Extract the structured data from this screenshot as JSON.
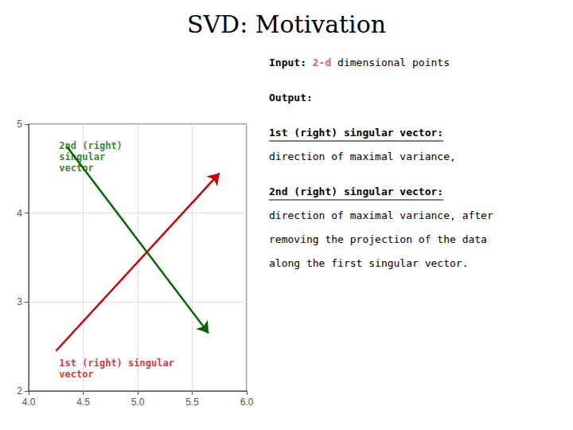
{
  "chart_data": {
    "type": "arrows",
    "title": "SVD: Motivation",
    "xlim": [
      4.0,
      6.0
    ],
    "ylim": [
      2.0,
      5.0
    ],
    "xticks": [
      {
        "value": 4.0,
        "label": "4.0"
      },
      {
        "value": 4.5,
        "label": "4.5"
      },
      {
        "value": 5.0,
        "label": "5.0"
      },
      {
        "value": 5.5,
        "label": "5.5"
      },
      {
        "value": 6.0,
        "label": "6.0"
      }
    ],
    "yticks": [
      2,
      3,
      4,
      5
    ],
    "grid": true,
    "series": [
      {
        "color": "#cc0000",
        "x": [
          4.25,
          5.75
        ],
        "values": [
          2.45,
          4.45
        ]
      },
      {
        "color": "#006600",
        "x": [
          4.35,
          5.65
        ],
        "values": [
          4.75,
          2.65
        ]
      }
    ],
    "annotations": [
      {
        "text": "2nd (right)\nsingular\nvector",
        "x": 4.28,
        "y": 4.82,
        "color": "#006600",
        "bold": true
      },
      {
        "text": "1st (right) singular\nvector",
        "x": 4.28,
        "y": 2.38,
        "color": "#cc0000",
        "bold": true
      },
      {
        "parts": [
          {
            "text": "Input: ",
            "bold": true
          },
          {
            "text": "2-d",
            "bold": true,
            "color": "#cc6666"
          },
          {
            "text": " dimensional points"
          }
        ]
      },
      {
        "text": "Output:",
        "bold": true
      },
      {
        "text": "1st (right) singular vector:",
        "bold": true,
        "underline": true
      },
      {
        "text": "direction of maximal variance,"
      },
      {
        "text": "2nd (right) singular vector:",
        "bold": true,
        "underline": true
      },
      {
        "text": "direction of maximal variance, after"
      },
      {
        "text": "removing the projection of the data"
      },
      {
        "text": "along the first singular vector."
      }
    ]
  }
}
